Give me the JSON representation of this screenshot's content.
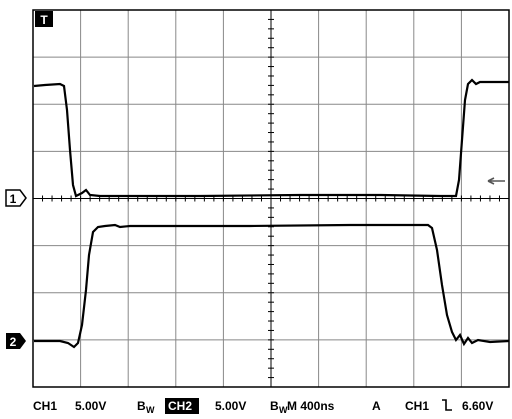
{
  "markers": {
    "trigger": "T",
    "ch1": "1",
    "ch2": "2"
  },
  "status": {
    "ch1": "CH1",
    "ch1_scale": "5.00V",
    "bw1_b": "B",
    "bw1_w": "W",
    "ch2": "CH2",
    "ch2_scale": "5.00V",
    "bw2_b": "B",
    "bw2_w": "W",
    "timebase": "M 400ns",
    "mode": "A",
    "trig_src": "CH1",
    "trig_level": "6.60V"
  }
}
